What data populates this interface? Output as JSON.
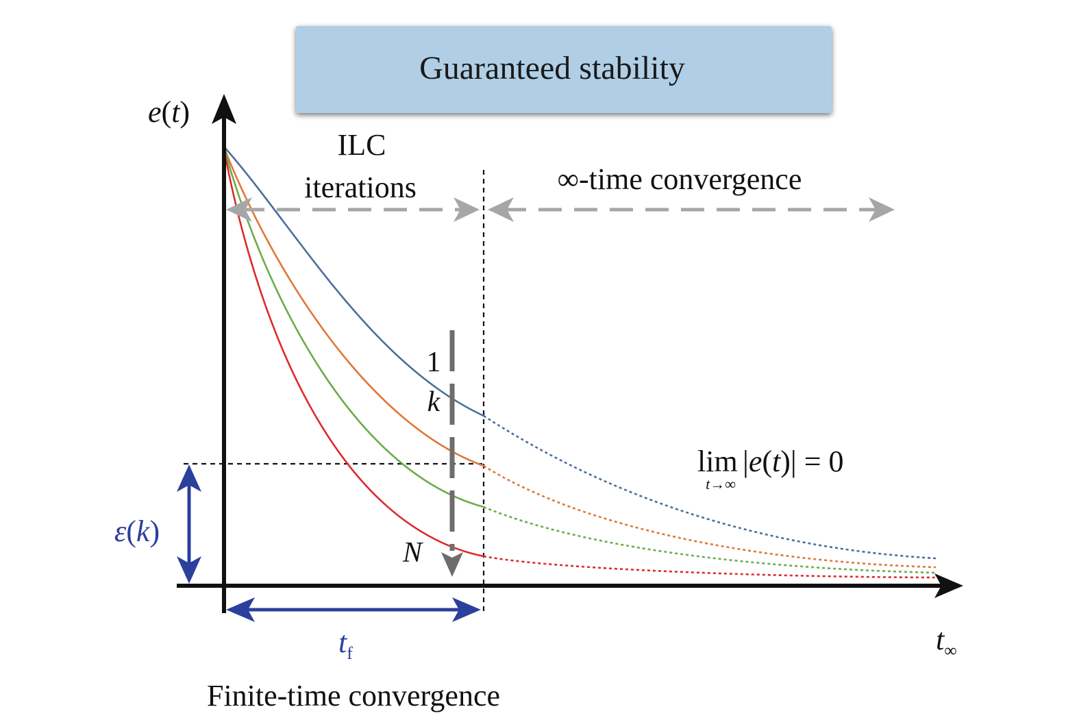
{
  "banner": {
    "text": "Guaranteed stability",
    "fill": "#b0cfe6"
  },
  "axes": {
    "y_label_var": "e",
    "y_label_arg": "t",
    "x_label_var": "t",
    "x_label_sub": "∞"
  },
  "labels": {
    "ilc_line1": "ILC",
    "ilc_line2": "iterations",
    "infinite_time": "∞-time convergence",
    "finite_time": "Finite-time convergence",
    "iter_first": "1",
    "iter_k": "k",
    "iter_N": "N",
    "epsilon_var": "ε",
    "epsilon_arg": "k",
    "tf_var": "t",
    "tf_sub": "f",
    "limit_lim": "lim",
    "limit_sub": "t→∞",
    "limit_expr_open": "|",
    "limit_expr_var": "e",
    "limit_expr_arg": "t",
    "limit_expr_close": "| = 0"
  },
  "colors": {
    "curve_1": "#4a6e9a",
    "curve_k": "#e0763a",
    "curve_3": "#6aac4a",
    "curve_N": "#dd2a2a",
    "accent_blue": "#2b3f9c",
    "arrow_gray": "#a6a6a6",
    "iteration_arrow": "#6d6d6d"
  }
}
